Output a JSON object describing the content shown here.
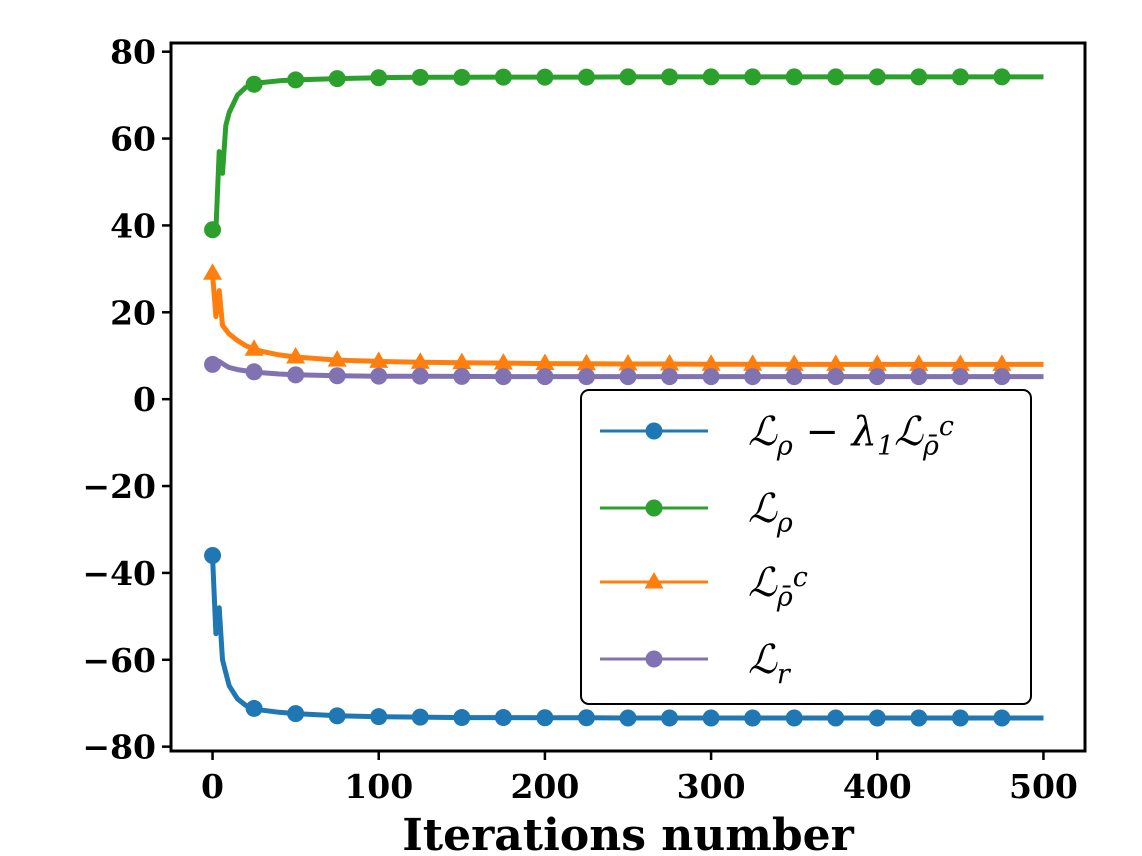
{
  "chart_data": {
    "type": "line",
    "title": "",
    "xlabel": "Iterations number",
    "ylabel": "",
    "xlim": [
      -25,
      525
    ],
    "ylim": [
      -81,
      82
    ],
    "xticks": [
      0,
      100,
      200,
      300,
      400,
      500
    ],
    "yticks": [
      80,
      60,
      40,
      20,
      0,
      -20,
      -40,
      -60,
      -80
    ],
    "xtick_labels": [
      "0",
      "100",
      "200",
      "300",
      "400",
      "500"
    ],
    "ytick_labels": [
      "80",
      "60",
      "40",
      "20",
      "0",
      "−20",
      "−40",
      "−60",
      "−80"
    ],
    "grid": false,
    "legend_position": "lower-right",
    "series": [
      {
        "name": "ℒρ − λ1ℒρ̄c",
        "color": "#1f77b4",
        "marker": "circle",
        "x": [
          0,
          2,
          4,
          6,
          8,
          10,
          15,
          20,
          25,
          30,
          40,
          50,
          75,
          100,
          125,
          150,
          175,
          200,
          225,
          250,
          275,
          300,
          325,
          350,
          375,
          400,
          425,
          450,
          475,
          500
        ],
        "values": [
          -36,
          -54,
          -48,
          -60,
          -63,
          -66,
          -69,
          -70.5,
          -71.2,
          -71.6,
          -72.1,
          -72.4,
          -72.9,
          -73.1,
          -73.2,
          -73.3,
          -73.3,
          -73.35,
          -73.35,
          -73.4,
          -73.4,
          -73.4,
          -73.4,
          -73.4,
          -73.4,
          -73.4,
          -73.4,
          -73.4,
          -73.4,
          -73.4
        ],
        "marker_x": [
          0,
          25,
          50,
          75,
          100,
          125,
          150,
          175,
          200,
          225,
          250,
          275,
          300,
          325,
          350,
          375,
          400,
          425,
          450,
          475
        ]
      },
      {
        "name": "ℒρ",
        "color": "#2ca02c",
        "marker": "circle",
        "x": [
          0,
          2,
          4,
          6,
          8,
          10,
          15,
          20,
          25,
          30,
          40,
          50,
          75,
          100,
          125,
          150,
          175,
          200,
          225,
          250,
          275,
          300,
          325,
          350,
          375,
          400,
          425,
          450,
          475,
          500
        ],
        "values": [
          39,
          39,
          57,
          52,
          63,
          66,
          70,
          71.8,
          72.5,
          72.9,
          73.3,
          73.5,
          73.8,
          74,
          74.1,
          74.1,
          74.15,
          74.15,
          74.15,
          74.2,
          74.2,
          74.2,
          74.2,
          74.2,
          74.2,
          74.2,
          74.2,
          74.2,
          74.2,
          74.2
        ],
        "marker_x": [
          0,
          25,
          50,
          75,
          100,
          125,
          150,
          175,
          200,
          225,
          250,
          275,
          300,
          325,
          350,
          375,
          400,
          425,
          450,
          475
        ]
      },
      {
        "name": "ℒρ̄c",
        "color": "#ff7f0e",
        "marker": "triangle",
        "x": [
          0,
          2,
          4,
          6,
          8,
          10,
          15,
          20,
          25,
          30,
          40,
          50,
          75,
          100,
          125,
          150,
          175,
          200,
          225,
          250,
          275,
          300,
          325,
          350,
          375,
          400,
          425,
          450,
          475,
          500
        ],
        "values": [
          29,
          19,
          25,
          17,
          16,
          15,
          13.5,
          12.3,
          11.5,
          11,
          10.2,
          9.7,
          9,
          8.7,
          8.5,
          8.4,
          8.3,
          8.2,
          8.15,
          8.1,
          8.1,
          8.05,
          8.05,
          8,
          8,
          8,
          8,
          8,
          8,
          8
        ],
        "marker_x": [
          0,
          25,
          50,
          75,
          100,
          125,
          150,
          175,
          200,
          225,
          250,
          275,
          300,
          325,
          350,
          375,
          400,
          425,
          450,
          475
        ]
      },
      {
        "name": "ℒr",
        "color": "#8172b2",
        "marker": "circle",
        "x": [
          0,
          2,
          4,
          6,
          8,
          10,
          15,
          20,
          25,
          30,
          40,
          50,
          75,
          100,
          125,
          150,
          175,
          200,
          225,
          250,
          275,
          300,
          325,
          350,
          375,
          400,
          425,
          450,
          475,
          500
        ],
        "values": [
          8,
          8.5,
          8.7,
          8.2,
          7.7,
          7.3,
          6.8,
          6.5,
          6.3,
          6.1,
          5.8,
          5.6,
          5.4,
          5.3,
          5.3,
          5.25,
          5.2,
          5.2,
          5.2,
          5.2,
          5.2,
          5.2,
          5.2,
          5.2,
          5.2,
          5.2,
          5.2,
          5.2,
          5.2,
          5.2
        ],
        "marker_x": [
          0,
          25,
          50,
          75,
          100,
          125,
          150,
          175,
          200,
          225,
          250,
          275,
          300,
          325,
          350,
          375,
          400,
          425,
          450,
          475
        ]
      }
    ],
    "legend": [
      {
        "base": "ℒ",
        "sub": "ρ",
        "op": " − λ",
        "opsub": "1",
        "base2": "ℒ",
        "sub2": "ρ̄",
        "sup2": "c"
      },
      {
        "base": "ℒ",
        "sub": "ρ"
      },
      {
        "base": "ℒ",
        "sub": "ρ̄",
        "sup": "c"
      },
      {
        "base": "ℒ",
        "sub": "r"
      }
    ]
  }
}
